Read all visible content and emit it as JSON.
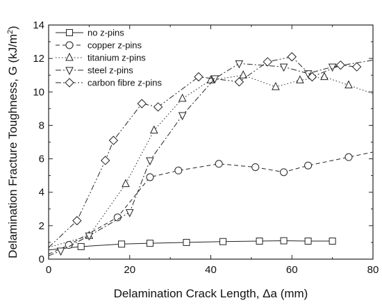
{
  "chart_data": {
    "type": "line",
    "xlabel": "Delamination Crack Length, Δa (mm)",
    "ylabel": "Delamination Fracture Toughness, G (kJ/m",
    "ylabel_sup": "2",
    "ylabel_close": ")",
    "xlim": [
      0,
      80
    ],
    "ylim": [
      0,
      14
    ],
    "xticks": [
      "0",
      "20",
      "40",
      "60",
      "80"
    ],
    "yticks": [
      "0",
      "2",
      "4",
      "6",
      "8",
      "10",
      "12",
      "14"
    ],
    "grid": false,
    "legend_position": "top-left",
    "series": [
      {
        "name": "no z-pins",
        "marker": "square",
        "dash": "solid",
        "x": [
          0,
          8,
          18,
          25,
          34,
          43,
          52,
          58,
          64,
          70
        ],
        "y": [
          0.55,
          0.75,
          0.9,
          0.95,
          1.0,
          1.05,
          1.08,
          1.1,
          1.08,
          1.08
        ]
      },
      {
        "name": "copper z-pins",
        "marker": "circle",
        "dash": "dashed",
        "x": [
          0,
          5,
          17,
          25,
          32,
          42,
          51,
          58,
          64,
          74,
          80
        ],
        "y": [
          0.3,
          0.85,
          2.5,
          4.9,
          5.3,
          5.7,
          5.5,
          5.2,
          5.6,
          6.1,
          6.4
        ]
      },
      {
        "name": "titanium z-pins",
        "marker": "triangle-up",
        "dash": "dotted",
        "x": [
          0,
          10,
          19,
          26,
          33,
          40,
          48,
          56,
          62,
          68,
          74,
          80
        ],
        "y": [
          0.7,
          1.4,
          4.5,
          7.7,
          9.6,
          10.7,
          11.0,
          10.3,
          10.7,
          10.9,
          10.4,
          9.9
        ]
      },
      {
        "name": "steel z-pins",
        "marker": "triangle-down",
        "dash": "dashdot",
        "x": [
          0,
          3,
          10,
          20,
          25,
          33,
          41,
          47,
          58,
          64,
          70,
          80
        ],
        "y": [
          0.2,
          0.5,
          1.4,
          2.8,
          5.9,
          8.6,
          10.8,
          11.7,
          11.5,
          11.1,
          11.5,
          11.9
        ]
      },
      {
        "name": "carbon fibre z-pins",
        "marker": "diamond",
        "dash": "dashdotdot",
        "x": [
          0,
          7,
          14,
          16,
          23,
          27,
          37,
          47,
          54,
          60,
          65,
          72,
          76
        ],
        "y": [
          0.7,
          2.3,
          5.9,
          7.1,
          9.3,
          9.1,
          10.9,
          10.6,
          11.8,
          12.1,
          10.9,
          11.6,
          11.5
        ]
      }
    ]
  }
}
